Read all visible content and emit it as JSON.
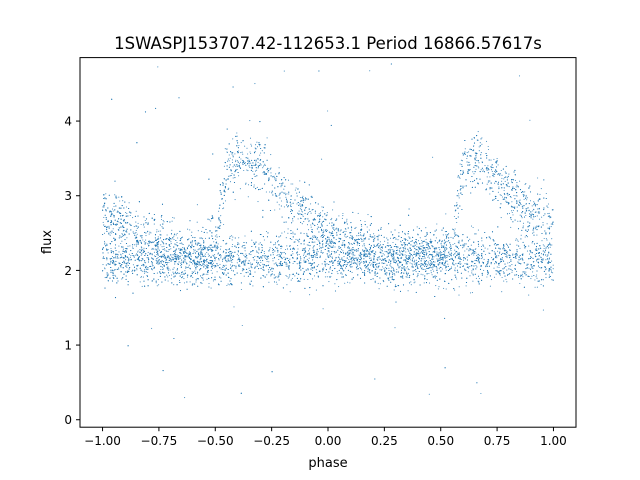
{
  "chart_data": {
    "type": "scatter",
    "title": "1SWASPJ153707.42-112653.1 Period 16866.57617s",
    "xlabel": "phase",
    "ylabel": "flux",
    "xlim": [
      -1.1,
      1.1
    ],
    "ylim": [
      -0.1,
      4.85
    ],
    "xticks": [
      -1.0,
      -0.75,
      -0.5,
      -0.25,
      0.0,
      0.25,
      0.5,
      0.75,
      1.0
    ],
    "xtick_labels": [
      "−1.00",
      "−0.75",
      "−0.50",
      "−0.25",
      "0.00",
      "0.25",
      "0.50",
      "0.75",
      "1.00"
    ],
    "yticks": [
      0,
      1,
      2,
      3,
      4
    ],
    "ytick_labels": [
      "0",
      "1",
      "2",
      "3",
      "4"
    ],
    "grid": false,
    "point_color": "#1f77b4",
    "series": [
      {
        "name": "",
        "baseline_flux": 2.15,
        "scatter_sd": 0.17,
        "outlier_range": [
          0.0,
          4.8
        ],
        "binned_profile": {
          "phase": [
            -1.0,
            -0.95,
            -0.9,
            -0.85,
            -0.8,
            -0.75,
            -0.7,
            -0.65,
            -0.6,
            -0.55,
            -0.5,
            -0.45,
            -0.4,
            -0.35,
            -0.3,
            -0.25,
            -0.2,
            -0.15,
            -0.1,
            -0.05,
            0.0,
            0.05,
            0.1,
            0.15,
            0.2,
            0.25,
            0.3,
            0.35,
            0.4,
            0.45,
            0.5,
            0.55,
            0.6,
            0.65,
            0.7,
            0.75,
            0.8,
            0.85,
            0.9,
            0.95,
            1.0
          ],
          "upper_flux": [
            2.75,
            2.7,
            2.6,
            2.5,
            2.45,
            2.35,
            2.3,
            2.25,
            2.2,
            2.2,
            2.25,
            3.4,
            3.5,
            3.45,
            3.4,
            3.2,
            3.0,
            2.9,
            2.75,
            2.6,
            2.5,
            2.45,
            2.35,
            2.3,
            2.25,
            2.2,
            2.2,
            2.2,
            2.2,
            2.2,
            2.2,
            2.25,
            3.4,
            3.5,
            3.4,
            3.2,
            3.05,
            2.9,
            2.8,
            2.75,
            2.7
          ]
        }
      }
    ]
  }
}
